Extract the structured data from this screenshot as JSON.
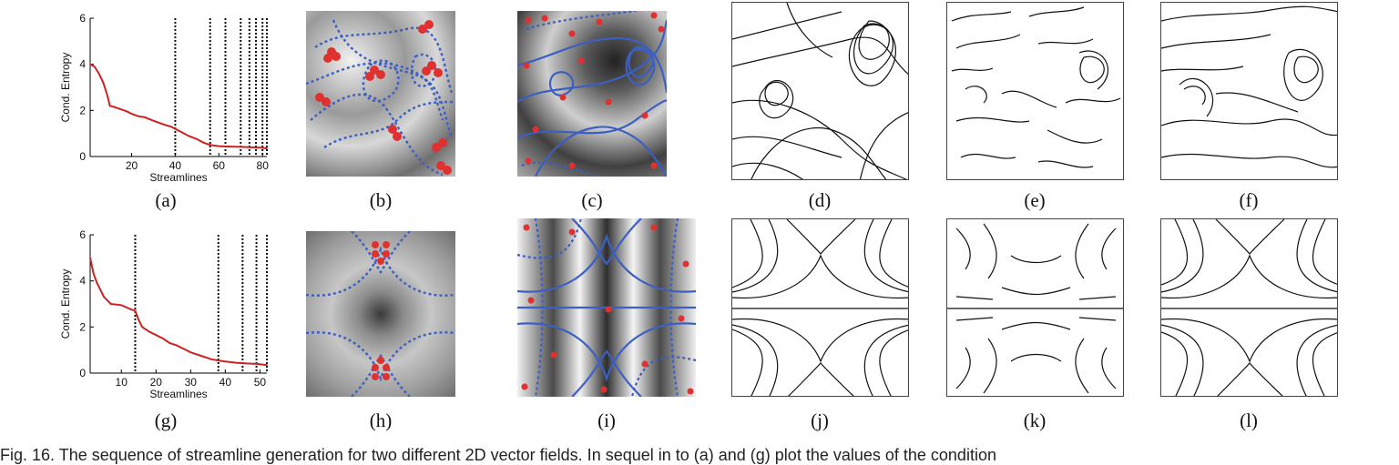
{
  "panel_labels": [
    "(a)",
    "(b)",
    "(c)",
    "(d)",
    "(e)",
    "(f)",
    "(g)",
    "(h)",
    "(i)",
    "(j)",
    "(k)",
    "(l)"
  ],
  "caption": "Fig. 16. The sequence of streamline generation for two different 2D vector fields. In sequel in to (a) and (g) plot the values of the condition",
  "colors": {
    "entropy_line": "#cc2222",
    "streamline_blue": "#3b5fc2",
    "seed_red": "#e03030"
  },
  "chart_data": [
    {
      "type": "line",
      "xlabel": "Streamlines",
      "ylabel": "Cond. Entropy",
      "xlim": [
        1,
        82
      ],
      "ylim": [
        0,
        6
      ],
      "xticks": [
        20,
        40,
        60,
        80
      ],
      "yticks": [
        0,
        2,
        4,
        6
      ],
      "vlines": [
        40,
        56,
        63,
        70,
        74,
        77,
        80,
        82
      ],
      "series": [
        {
          "x": [
            1,
            3,
            5,
            7,
            9,
            10,
            12,
            15,
            18,
            20,
            23,
            26,
            30,
            33,
            36,
            38,
            40,
            43,
            46,
            50,
            53,
            56,
            60,
            65,
            70,
            75,
            80,
            82
          ],
          "values": [
            4.0,
            3.9,
            3.6,
            3.2,
            2.6,
            2.2,
            2.15,
            2.05,
            1.95,
            1.85,
            1.75,
            1.7,
            1.55,
            1.45,
            1.35,
            1.3,
            1.2,
            1.05,
            0.9,
            0.75,
            0.6,
            0.5,
            0.45,
            0.43,
            0.42,
            0.4,
            0.38,
            0.35
          ]
        }
      ]
    },
    {
      "type": "line",
      "xlabel": "Streamlines",
      "ylabel": "Cond. Entropy",
      "xlim": [
        1,
        52
      ],
      "ylim": [
        0,
        6
      ],
      "xticks": [
        10,
        20,
        30,
        40,
        50
      ],
      "yticks": [
        0,
        2,
        4,
        6
      ],
      "vlines": [
        14,
        38,
        45,
        49,
        52
      ],
      "series": [
        {
          "x": [
            1,
            2,
            3,
            4,
            5,
            7,
            10,
            13,
            14,
            15,
            16,
            18,
            20,
            22,
            24,
            26,
            28,
            30,
            33,
            36,
            38,
            40,
            43,
            46,
            49,
            52
          ],
          "values": [
            5.0,
            4.3,
            3.9,
            3.6,
            3.3,
            3.0,
            2.95,
            2.75,
            2.7,
            2.3,
            2.0,
            1.8,
            1.65,
            1.5,
            1.3,
            1.2,
            1.05,
            0.9,
            0.75,
            0.6,
            0.55,
            0.5,
            0.45,
            0.42,
            0.4,
            0.35
          ]
        }
      ]
    }
  ]
}
